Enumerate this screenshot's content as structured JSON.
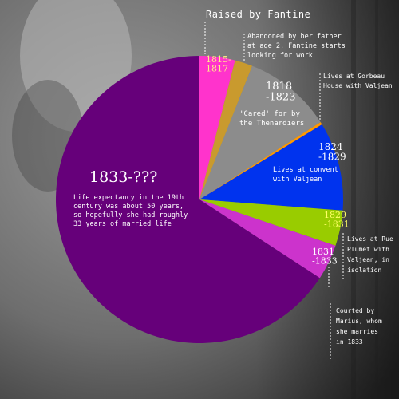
{
  "chart_data": {
    "type": "pie",
    "title": "",
    "slices": [
      {
        "id": "fantine",
        "value": 2,
        "color": "#ff33cc",
        "years": "1815-\n1817",
        "years_color": "#ffee88",
        "desc": "Abandoned by her father\nat age 2. Fantine starts\nlooking for work"
      },
      {
        "id": "gap1",
        "value": 1,
        "color": "#c99a2e",
        "years": "",
        "years_color": "#ffffff",
        "desc": ""
      },
      {
        "id": "thenardier",
        "value": 5,
        "color": "#8c8c8c",
        "years": "1818\n-1823",
        "years_color": "#ffffff",
        "desc": "'Cared' for by\nthe Thenardiers"
      },
      {
        "id": "gorbeau",
        "value": 0.15,
        "color": "#ff9900",
        "years": "",
        "years_color": "#ffffff",
        "desc": "Lives at Gorbeau\nHouse with Valjean"
      },
      {
        "id": "convent",
        "value": 5,
        "color": "#0033ee",
        "years": "1824\n-1829",
        "years_color": "#ffffff",
        "desc": "Lives at convent\nwith Valjean"
      },
      {
        "id": "plumet",
        "value": 2,
        "color": "#99cc00",
        "years": "1829\n-1831",
        "years_color": "#ffff66",
        "desc": "Lives at Rue\nPlumet with\nValjean, in\nisolation"
      },
      {
        "id": "marius",
        "value": 2,
        "color": "#cc33cc",
        "years": "1831\n-1833",
        "years_color": "#ffffff",
        "desc": "Courted by\nMarius, whom\nshe marries\nin 1833"
      },
      {
        "id": "married",
        "value": 33,
        "color": "#66007a",
        "years": "1833-???",
        "years_color": "#ffffff",
        "desc": "Life expectancy in the 19th\ncentury was about 50 years,\nso hopefully she had roughly\n33 years of married life"
      }
    ],
    "header_label": "Raised by Fantine"
  }
}
